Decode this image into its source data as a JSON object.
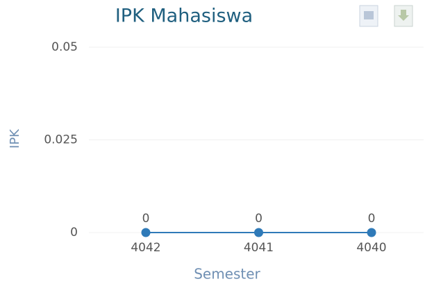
{
  "chart_data": {
    "type": "line",
    "title": "IPK Mahasiswa",
    "x_label": "Semester",
    "y_label": "IPK",
    "categories": [
      "4042",
      "4041",
      "4040"
    ],
    "series": [
      {
        "name": "IPK",
        "color": "#2f7ab8",
        "values": [
          0,
          0,
          0
        ]
      }
    ],
    "ylim": [
      0,
      0.05
    ],
    "yticks": [
      0,
      0.025,
      0.05
    ],
    "grid": true
  }
}
